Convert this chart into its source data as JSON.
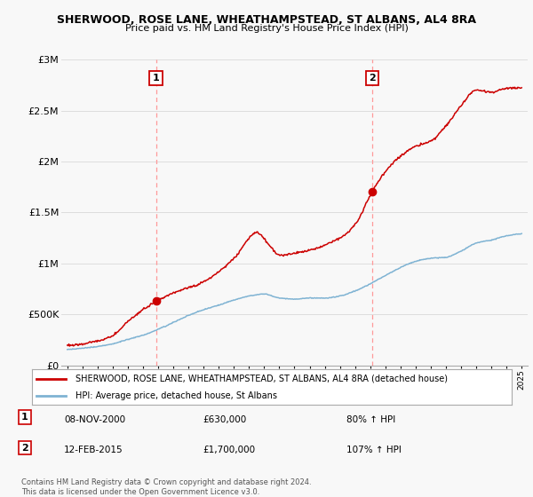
{
  "title": "SHERWOOD, ROSE LANE, WHEATHAMPSTEAD, ST ALBANS, AL4 8RA",
  "subtitle": "Price paid vs. HM Land Registry's House Price Index (HPI)",
  "ylim": [
    0,
    3000000
  ],
  "yticks": [
    0,
    500000,
    1000000,
    1500000,
    2000000,
    2500000,
    3000000
  ],
  "ytick_labels": [
    "£0",
    "£500K",
    "£1M",
    "£1.5M",
    "£2M",
    "£2.5M",
    "£3M"
  ],
  "sale1_year": 2000.86,
  "sale1_price": 630000,
  "sale2_year": 2015.12,
  "sale2_price": 1700000,
  "red_line_color": "#cc0000",
  "blue_line_color": "#7fb3d3",
  "dashed_vline_color": "#ff9999",
  "annotation1_label": "1",
  "annotation2_label": "2",
  "legend_red_label": "SHERWOOD, ROSE LANE, WHEATHAMPSTEAD, ST ALBANS, AL4 8RA (detached house)",
  "legend_blue_label": "HPI: Average price, detached house, St Albans",
  "info1_date": "08-NOV-2000",
  "info1_price": "£630,000",
  "info1_hpi": "80% ↑ HPI",
  "info2_date": "12-FEB-2015",
  "info2_price": "£1,700,000",
  "info2_hpi": "107% ↑ HPI",
  "footnote": "Contains HM Land Registry data © Crown copyright and database right 2024.\nThis data is licensed under the Open Government Licence v3.0.",
  "background_color": "#f8f8f8",
  "plot_bg_color": "#f8f8f8",
  "grid_color": "#dddddd",
  "red_keypoints_year": [
    1995,
    1997,
    1998,
    1999,
    2000.86,
    2002,
    2004,
    2006,
    2007.5,
    2008.5,
    2009,
    2010,
    2011,
    2012,
    2013,
    2014,
    2015.12,
    2016,
    2017,
    2018,
    2019,
    2020,
    2021,
    2022,
    2023,
    2024,
    2025
  ],
  "red_keypoints_val": [
    195000,
    240000,
    290000,
    430000,
    630000,
    710000,
    820000,
    1050000,
    1300000,
    1150000,
    1080000,
    1100000,
    1130000,
    1180000,
    1250000,
    1380000,
    1700000,
    1900000,
    2050000,
    2150000,
    2200000,
    2350000,
    2550000,
    2700000,
    2680000,
    2720000,
    2720000
  ],
  "blue_keypoints_year": [
    1995,
    1997,
    1998,
    1999,
    2000,
    2001,
    2002,
    2003,
    2004,
    2005,
    2006,
    2007,
    2008,
    2009,
    2010,
    2011,
    2012,
    2013,
    2014,
    2015,
    2016,
    2017,
    2018,
    2019,
    2020,
    2021,
    2022,
    2023,
    2024,
    2025
  ],
  "blue_keypoints_val": [
    155000,
    185000,
    210000,
    255000,
    295000,
    355000,
    420000,
    490000,
    545000,
    590000,
    640000,
    680000,
    700000,
    660000,
    650000,
    660000,
    660000,
    680000,
    730000,
    800000,
    880000,
    960000,
    1020000,
    1050000,
    1060000,
    1120000,
    1200000,
    1230000,
    1270000,
    1290000
  ]
}
